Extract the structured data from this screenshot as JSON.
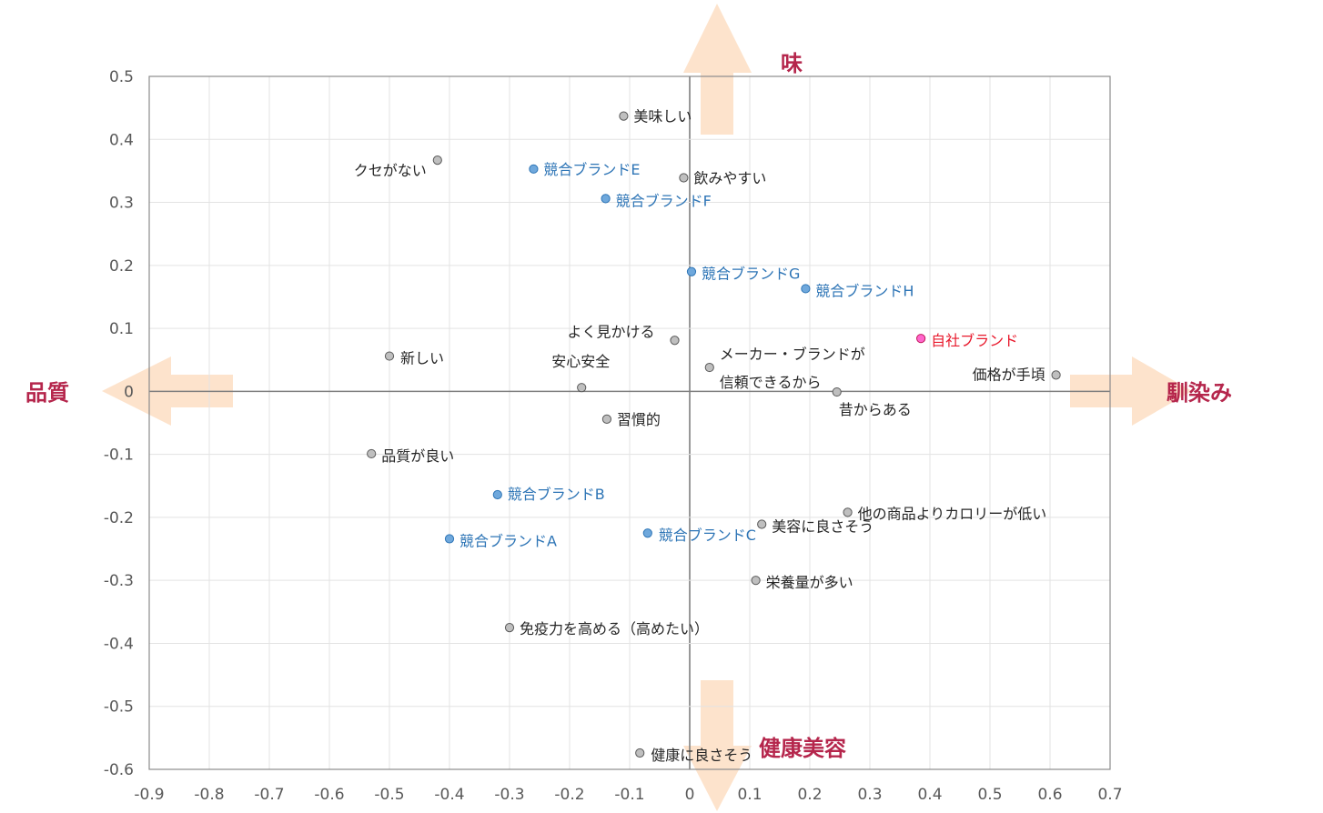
{
  "chart_data": {
    "type": "scatter",
    "xlim": [
      -0.9,
      0.7
    ],
    "ylim": [
      -0.6,
      0.5
    ],
    "x_ticks": [
      "-0.9",
      "-0.8",
      "-0.7",
      "-0.6",
      "-0.5",
      "-0.4",
      "-0.3",
      "-0.2",
      "-0.1",
      "0",
      "0.1",
      "0.2",
      "0.3",
      "0.4",
      "0.5",
      "0.6",
      "0.7"
    ],
    "y_ticks": [
      "0.5",
      "0.4",
      "0.3",
      "0.2",
      "0.1",
      "0",
      "-0.1",
      "-0.2",
      "-0.3",
      "-0.4",
      "-0.5",
      "-0.6"
    ],
    "grid": true,
    "axis_titles": {
      "top": "味",
      "bottom": "健康美容",
      "left": "品質",
      "right": "馴染み"
    },
    "colors": {
      "attribute": "#bfbfbf",
      "competitor": "#6fa8dc",
      "competitor_text": "#2e75b6",
      "own": "#ff66cc",
      "own_text": "#e8192c",
      "axis_title": "#b5264c",
      "arrow": "#fde3cc"
    },
    "series": [
      {
        "group": "attribute",
        "points": [
          {
            "label": "美味しい",
            "x": -0.11,
            "y": 0.437
          },
          {
            "label": "クセがない",
            "x": -0.42,
            "y": 0.367
          },
          {
            "label": "飲みやすい",
            "x": -0.01,
            "y": 0.339
          },
          {
            "label": "よく見かける",
            "x": -0.025,
            "y": 0.081
          },
          {
            "label": "新しい",
            "x": -0.5,
            "y": 0.056
          },
          {
            "label": "メーカー・ブランドが",
            "label2": "信頼できるから",
            "x": 0.033,
            "y": 0.038
          },
          {
            "label": "安心安全",
            "x": -0.18,
            "y": 0.006
          },
          {
            "label": "価格が手頃",
            "x": 0.61,
            "y": 0.026
          },
          {
            "label": "昔からある",
            "x": 0.245,
            "y": -0.001
          },
          {
            "label": "習慣的",
            "x": -0.138,
            "y": -0.044
          },
          {
            "label": "品質が良い",
            "x": -0.53,
            "y": -0.099
          },
          {
            "label": "他の商品よりカロリーが低い",
            "x": 0.263,
            "y": -0.192
          },
          {
            "label": "美容に良さそう",
            "x": 0.12,
            "y": -0.211
          },
          {
            "label": "栄養量が多い",
            "x": 0.11,
            "y": -0.3
          },
          {
            "label": "免疫力を高める（高めたい）",
            "x": -0.3,
            "y": -0.375
          },
          {
            "label": "健康に良さそう",
            "x": -0.083,
            "y": -0.574
          }
        ]
      },
      {
        "group": "competitor",
        "points": [
          {
            "label": "競合ブランドE",
            "x": -0.26,
            "y": 0.353
          },
          {
            "label": "競合ブランドF",
            "x": -0.14,
            "y": 0.306
          },
          {
            "label": "競合ブランドG",
            "x": 0.003,
            "y": 0.19
          },
          {
            "label": "競合ブランドH",
            "x": 0.193,
            "y": 0.163
          },
          {
            "label": "競合ブランドB",
            "x": -0.32,
            "y": -0.164
          },
          {
            "label": "競合ブランドC",
            "x": -0.07,
            "y": -0.225
          },
          {
            "label": "競合ブランドA",
            "x": -0.4,
            "y": -0.234
          }
        ]
      },
      {
        "group": "own",
        "points": [
          {
            "label": "自社ブランド",
            "x": 0.385,
            "y": 0.084
          }
        ]
      }
    ]
  }
}
